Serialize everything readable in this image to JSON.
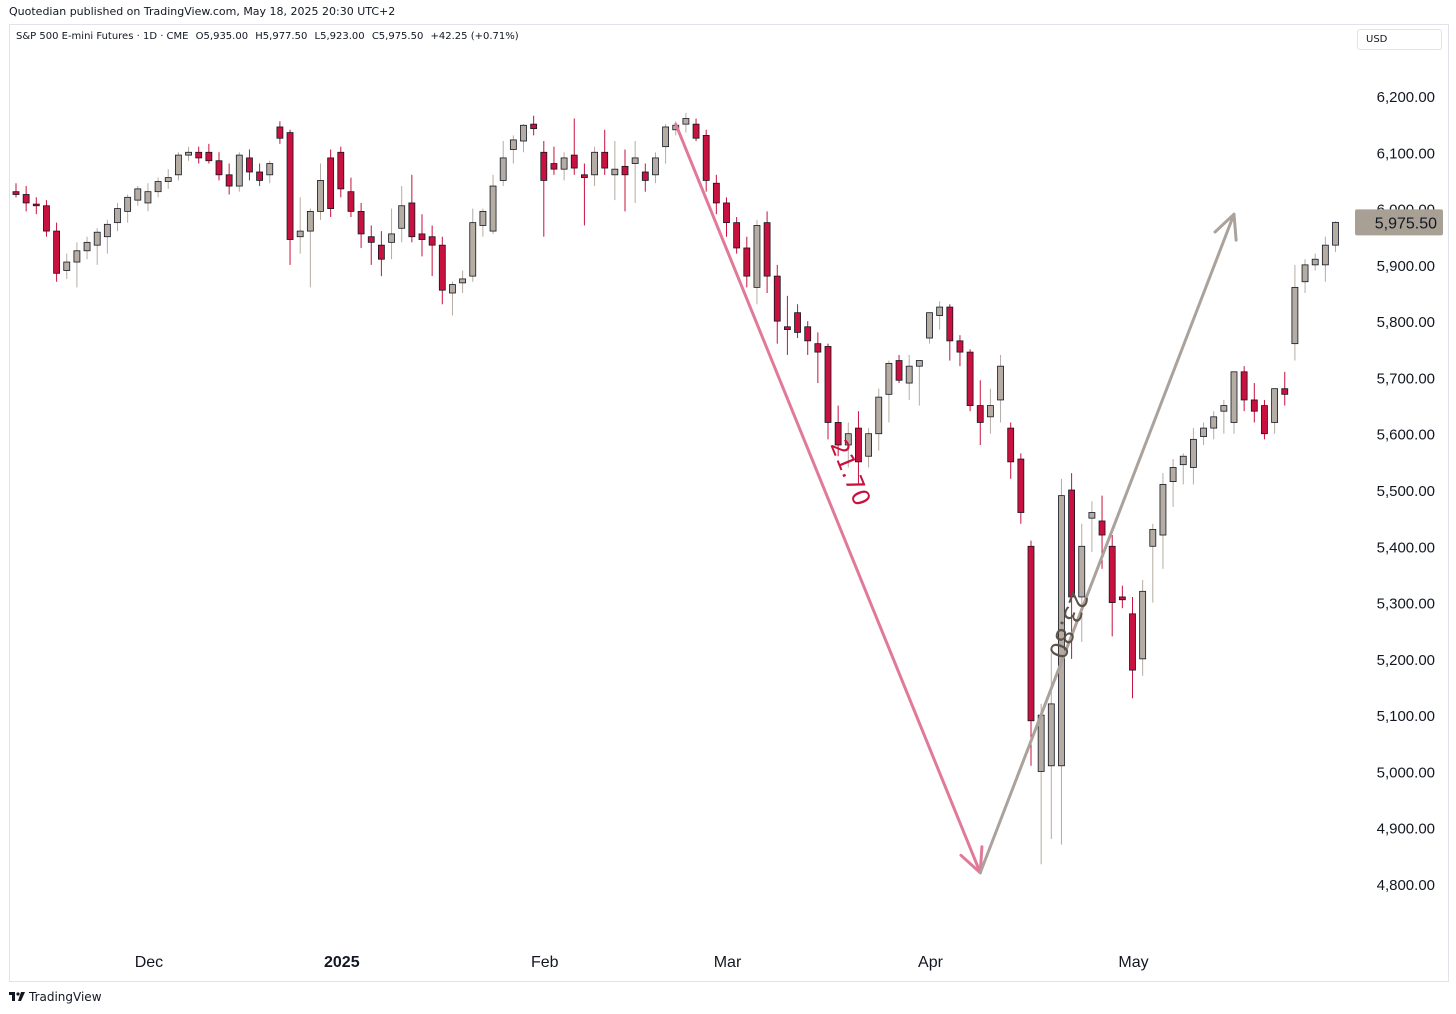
{
  "header": {
    "published_by": "Quotedian published on TradingView.com, May 18, 2025 20:30 UTC+2"
  },
  "symbol": {
    "name": "S&P 500 E-mini Futures · 1D · CME",
    "open": "O5,935.00",
    "high": "H5,977.50",
    "low": "L5,923.00",
    "close": "C5,975.50",
    "change": "+42.25 (+0.71%)"
  },
  "currency_button": "USD",
  "footer": {
    "brand": "TradingView"
  },
  "colors": {
    "up": "#b5aca3",
    "down": "#c8113e",
    "down_arrow": "#e07a98",
    "up_arrow": "#aaa29b",
    "price_label_bg": "#a8a095"
  },
  "chart_data": {
    "type": "candlestick",
    "ylim": [
      4720,
      6300
    ],
    "y_ticks": [
      "4,800.00",
      "4,900.00",
      "5,000.00",
      "5,100.00",
      "5,200.00",
      "5,300.00",
      "5,400.00",
      "5,500.00",
      "5,600.00",
      "5,700.00",
      "5,800.00",
      "5,900.00",
      "6,000.00",
      "6,100.00",
      "6,200.00"
    ],
    "y_tick_values": [
      4800,
      4900,
      5000,
      5100,
      5200,
      5300,
      5400,
      5500,
      5600,
      5700,
      5800,
      5900,
      6000,
      6100,
      6200
    ],
    "x_labels": [
      {
        "label": "Dec",
        "bar_index": 13
      },
      {
        "label": "2025",
        "bar_index": 32
      },
      {
        "label": "Feb",
        "bar_index": 52
      },
      {
        "label": "Mar",
        "bar_index": 70
      },
      {
        "label": "Apr",
        "bar_index": 90
      },
      {
        "label": "May",
        "bar_index": 110
      }
    ],
    "last_price": "5,975.50",
    "last_price_value": 5975.5,
    "candles": [
      [
        6030,
        6045,
        6020,
        6025
      ],
      [
        6025,
        6040,
        5995,
        6010
      ],
      [
        6008,
        6020,
        5990,
        6005
      ],
      [
        6005,
        6015,
        5950,
        5960
      ],
      [
        5960,
        5975,
        5870,
        5885
      ],
      [
        5890,
        5920,
        5875,
        5905
      ],
      [
        5905,
        5940,
        5860,
        5925
      ],
      [
        5925,
        5950,
        5910,
        5940
      ],
      [
        5935,
        5965,
        5900,
        5958
      ],
      [
        5950,
        5980,
        5920,
        5972
      ],
      [
        5975,
        6010,
        5960,
        6000
      ],
      [
        5995,
        6025,
        5975,
        6020
      ],
      [
        6015,
        6040,
        6005,
        6035
      ],
      [
        6010,
        6045,
        5995,
        6030
      ],
      [
        6030,
        6055,
        6020,
        6048
      ],
      [
        6048,
        6070,
        6035,
        6055
      ],
      [
        6060,
        6100,
        6050,
        6095
      ],
      [
        6095,
        6110,
        6085,
        6100
      ],
      [
        6100,
        6110,
        6080,
        6090
      ],
      [
        6100,
        6115,
        6080,
        6085
      ],
      [
        6085,
        6100,
        6050,
        6060
      ],
      [
        6060,
        6080,
        6025,
        6040
      ],
      [
        6040,
        6100,
        6030,
        6095
      ],
      [
        6090,
        6105,
        6050,
        6065
      ],
      [
        6065,
        6080,
        6040,
        6050
      ],
      [
        6060,
        6085,
        6045,
        6080
      ],
      [
        6145,
        6155,
        6115,
        6125
      ],
      [
        6135,
        6140,
        5900,
        5945
      ],
      [
        5950,
        6020,
        5920,
        5960
      ],
      [
        5960,
        6000,
        5860,
        5995
      ],
      [
        5995,
        6080,
        5980,
        6050
      ],
      [
        6090,
        6105,
        5985,
        6000
      ],
      [
        6100,
        6110,
        6020,
        6035
      ],
      [
        6030,
        6055,
        5985,
        5995
      ],
      [
        5995,
        6010,
        5930,
        5955
      ],
      [
        5950,
        5970,
        5900,
        5940
      ],
      [
        5935,
        5960,
        5880,
        5910
      ],
      [
        5940,
        6000,
        5910,
        5955
      ],
      [
        5965,
        6040,
        5940,
        6005
      ],
      [
        6010,
        6060,
        5940,
        5950
      ],
      [
        5955,
        5990,
        5915,
        5945
      ],
      [
        5950,
        5970,
        5880,
        5935
      ],
      [
        5935,
        5950,
        5830,
        5855
      ],
      [
        5850,
        5870,
        5810,
        5865
      ],
      [
        5868,
        5890,
        5850,
        5875
      ],
      [
        5880,
        6000,
        5870,
        5975
      ],
      [
        5970,
        6000,
        5950,
        5995
      ],
      [
        5960,
        6060,
        5955,
        6040
      ],
      [
        6050,
        6120,
        6040,
        6090
      ],
      [
        6105,
        6130,
        6080,
        6122
      ],
      [
        6120,
        6150,
        6100,
        6148
      ],
      [
        6150,
        6165,
        6130,
        6142
      ],
      [
        6100,
        6120,
        5950,
        6050
      ],
      [
        6080,
        6110,
        6060,
        6070
      ],
      [
        6070,
        6100,
        6050,
        6090
      ],
      [
        6095,
        6160,
        6060,
        6072
      ],
      [
        6060,
        6080,
        5970,
        6055
      ],
      [
        6060,
        6110,
        6040,
        6100
      ],
      [
        6100,
        6140,
        6060,
        6072
      ],
      [
        6060,
        6120,
        6015,
        6070
      ],
      [
        6075,
        6105,
        5995,
        6060
      ],
      [
        6080,
        6120,
        6010,
        6090
      ],
      [
        6065,
        6080,
        6030,
        6050
      ],
      [
        6060,
        6100,
        6045,
        6090
      ],
      [
        6110,
        6150,
        6080,
        6145
      ],
      [
        6140,
        6155,
        6130,
        6148
      ],
      [
        6150,
        6170,
        6135,
        6160
      ],
      [
        6150,
        6160,
        6120,
        6125
      ],
      [
        6130,
        6140,
        6030,
        6050
      ],
      [
        6045,
        6060,
        5990,
        6010
      ],
      [
        6010,
        6020,
        5950,
        5975
      ],
      [
        5975,
        5985,
        5920,
        5930
      ],
      [
        5930,
        5950,
        5860,
        5880
      ],
      [
        5860,
        5980,
        5830,
        5970
      ],
      [
        5975,
        5995,
        5850,
        5880
      ],
      [
        5880,
        5900,
        5760,
        5800
      ],
      [
        5790,
        5845,
        5740,
        5785
      ],
      [
        5815,
        5830,
        5770,
        5780
      ],
      [
        5790,
        5800,
        5740,
        5765
      ],
      [
        5760,
        5780,
        5690,
        5745
      ],
      [
        5755,
        5760,
        5590,
        5620
      ],
      [
        5620,
        5650,
        5560,
        5580
      ],
      [
        5580,
        5620,
        5540,
        5600
      ],
      [
        5610,
        5640,
        5510,
        5550
      ],
      [
        5560,
        5610,
        5540,
        5600
      ],
      [
        5600,
        5680,
        5570,
        5665
      ],
      [
        5670,
        5730,
        5620,
        5725
      ],
      [
        5730,
        5740,
        5690,
        5695
      ],
      [
        5690,
        5740,
        5660,
        5720
      ],
      [
        5720,
        5730,
        5650,
        5730
      ],
      [
        5770,
        5810,
        5760,
        5815
      ],
      [
        5810,
        5835,
        5785,
        5825
      ],
      [
        5825,
        5830,
        5730,
        5765
      ],
      [
        5765,
        5775,
        5720,
        5745
      ],
      [
        5745,
        5750,
        5640,
        5650
      ],
      [
        5650,
        5695,
        5580,
        5620
      ],
      [
        5630,
        5680,
        5600,
        5650
      ],
      [
        5660,
        5740,
        5620,
        5720
      ],
      [
        5610,
        5620,
        5520,
        5550
      ],
      [
        5555,
        5565,
        5440,
        5460
      ],
      [
        5400,
        5410,
        5010,
        5090
      ],
      [
        5000,
        5120,
        4835,
        5100
      ],
      [
        5010,
        5210,
        4880,
        5120
      ],
      [
        5010,
        5520,
        4870,
        5490
      ],
      [
        5500,
        5530,
        5200,
        5310
      ],
      [
        5310,
        5440,
        5230,
        5400
      ],
      [
        5450,
        5480,
        5390,
        5460
      ],
      [
        5445,
        5490,
        5360,
        5420
      ],
      [
        5400,
        5420,
        5240,
        5300
      ],
      [
        5310,
        5330,
        5290,
        5305
      ],
      [
        5280,
        5310,
        5130,
        5180
      ],
      [
        5200,
        5340,
        5170,
        5320
      ],
      [
        5400,
        5440,
        5300,
        5430
      ],
      [
        5420,
        5530,
        5360,
        5510
      ],
      [
        5515,
        5555,
        5470,
        5540
      ],
      [
        5545,
        5565,
        5510,
        5560
      ],
      [
        5540,
        5610,
        5510,
        5590
      ],
      [
        5595,
        5620,
        5580,
        5610
      ],
      [
        5610,
        5640,
        5590,
        5630
      ],
      [
        5640,
        5660,
        5600,
        5650
      ],
      [
        5620,
        5700,
        5600,
        5710
      ],
      [
        5710,
        5720,
        5640,
        5660
      ],
      [
        5660,
        5690,
        5620,
        5640
      ],
      [
        5650,
        5660,
        5590,
        5600
      ],
      [
        5620,
        5680,
        5600,
        5680
      ],
      [
        5680,
        5710,
        5650,
        5670
      ],
      [
        5760,
        5900,
        5730,
        5860
      ],
      [
        5870,
        5910,
        5850,
        5900
      ],
      [
        5900,
        5920,
        5890,
        5910
      ],
      [
        5900,
        5950,
        5870,
        5935
      ],
      [
        5935,
        5977.5,
        5923,
        5975.5
      ]
    ],
    "measurements": [
      {
        "label": "21.70",
        "from": {
          "bar_index": 65,
          "value": 6150
        },
        "to": {
          "bar_index": 95,
          "value": 4820
        },
        "direction": "down"
      },
      {
        "label": "23.80",
        "from": {
          "bar_index": 95,
          "value": 4820
        },
        "to": {
          "bar_index": 120,
          "value": 5990
        },
        "direction": "up"
      }
    ]
  }
}
